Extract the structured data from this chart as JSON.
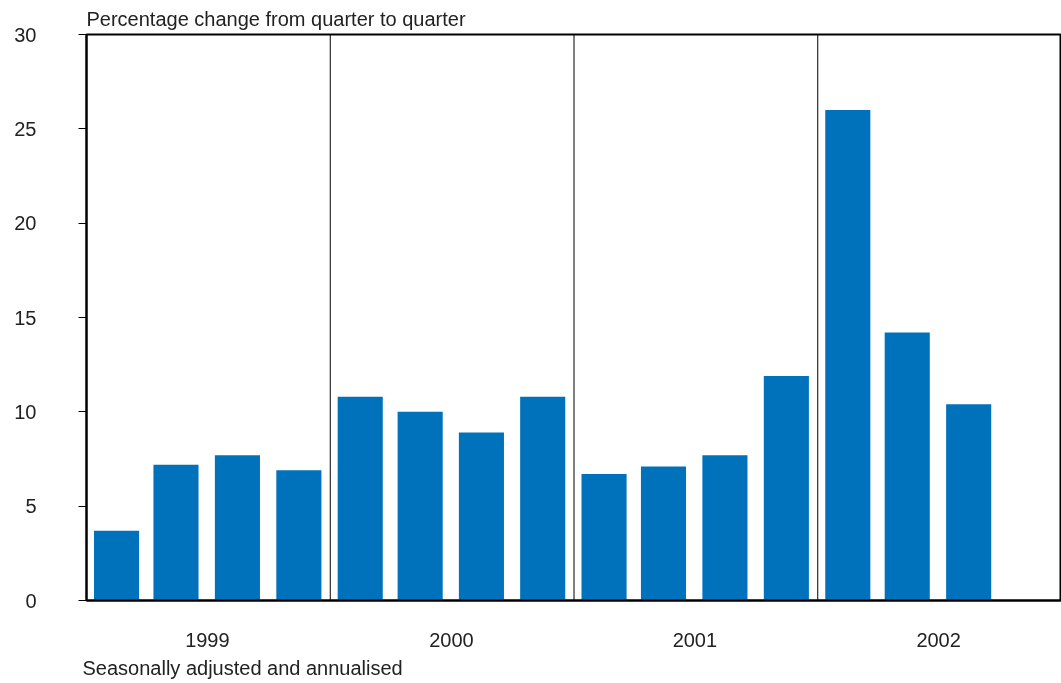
{
  "chart_data": {
    "type": "bar",
    "title": "Percentage change from quarter to quarter",
    "x": [
      "1999-02-15",
      "1999-05-15",
      "1999-08-15",
      "1999-11-15",
      "2000-02-15",
      "2000-05-15",
      "2000-08-15",
      "2000-11-15",
      "2001-02-15",
      "2001-05-15",
      "2001-08-15",
      "2001-11-15",
      "2002-02-15",
      "2002-05-15",
      "2002-08-15"
    ],
    "values": [
      3.7,
      7.2,
      7.7,
      6.9,
      10.8,
      10.0,
      8.9,
      10.8,
      6.7,
      7.1,
      7.7,
      11.9,
      26.0,
      14.2,
      10.4
    ],
    "color": "#0072bc",
    "xlim": [
      "1999-01-01",
      "2003-01-01"
    ],
    "xticks": [
      {
        "value": "1999-07-01",
        "label": "1999"
      },
      {
        "value": "2000-07-01",
        "label": "2000"
      },
      {
        "value": "2001-07-01",
        "label": "2001"
      },
      {
        "value": "2002-07-01",
        "label": "2002"
      }
    ],
    "ylim": [
      0,
      30
    ],
    "yticks": [
      0,
      5,
      10,
      15,
      20,
      25,
      30
    ],
    "ref_lines": [
      {
        "axis": "x",
        "value": "2000-01-01",
        "label": null,
        "color": "#000000"
      },
      {
        "axis": "x",
        "value": "2001-01-01",
        "label": null,
        "color": "#000000"
      },
      {
        "axis": "x",
        "value": "2002-01-01",
        "label": null,
        "color": "#000000"
      }
    ],
    "grid": false,
    "annotations": [
      "Seasonally adjusted and annualised"
    ]
  }
}
